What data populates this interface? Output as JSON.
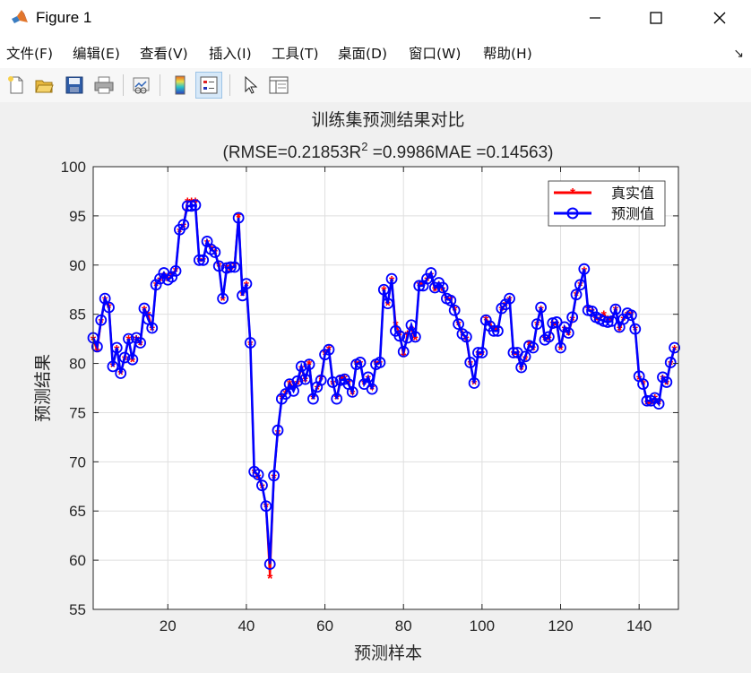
{
  "window": {
    "title": "Figure 1"
  },
  "menu": [
    "文件(F)",
    "编辑(E)",
    "查看(V)",
    "插入(I)",
    "工具(T)",
    "桌面(D)",
    "窗口(W)",
    "帮助(H)"
  ],
  "toolbar_icons": [
    "new-file-icon",
    "open-folder-icon",
    "save-icon",
    "print-icon",
    "link-plot-icon",
    "colorbar-icon",
    "legend-icon",
    "pointer-icon",
    "property-editor-icon"
  ],
  "chart_data": {
    "type": "line",
    "title": "训练集预测结果对比",
    "subtitle_prefix": "(RMSE=0.21853R",
    "subtitle_sup": "2",
    "subtitle_suffix": " =0.9986MAE =0.14563)",
    "xlabel": "预测样本",
    "ylabel": "预测结果",
    "xlim": [
      1,
      150
    ],
    "ylim": [
      55,
      100
    ],
    "xticks": [
      20,
      40,
      60,
      80,
      100,
      120,
      140
    ],
    "yticks": [
      55,
      60,
      65,
      70,
      75,
      80,
      85,
      90,
      95,
      100
    ],
    "grid": true,
    "legend_position": "top-right",
    "colors": {
      "true": "#ff0000",
      "pred": "#0000ff",
      "grid": "#dfdfdf"
    },
    "series": [
      {
        "name": "真实值",
        "marker": "*",
        "values": [
          82.5,
          81.3,
          84.3,
          86.5,
          85.8,
          79.8,
          81.5,
          79,
          80.5,
          82.5,
          80.3,
          82.5,
          82,
          85.5,
          85,
          83.5,
          88,
          88.5,
          89,
          88.5,
          89,
          89.5,
          93.5,
          94,
          96.5,
          96.5,
          96.5,
          90.5,
          90.5,
          92.3,
          91.7,
          91.3,
          90,
          86.5,
          89.8,
          89.5,
          90,
          95,
          87,
          88,
          82,
          69,
          68.5,
          67.5,
          65.5,
          58.3,
          68.5,
          73,
          76.5,
          77,
          78,
          77.5,
          78,
          79.5,
          78.3,
          80,
          76.5,
          77.5,
          78.5,
          81,
          81.5,
          78,
          76.5,
          78.5,
          78.5,
          78,
          77,
          80,
          80,
          78,
          78.5,
          77.5,
          80,
          80,
          87.5,
          86,
          88.5,
          84,
          83,
          80.8,
          83,
          83.5,
          82.5,
          88,
          88,
          88.5,
          89,
          87.5,
          88,
          87.5,
          86.5,
          86.5,
          85.5,
          84,
          83,
          82.5,
          80,
          78,
          81,
          81,
          84.5,
          84,
          83.5,
          83.5,
          85.5,
          86,
          86.5,
          81,
          81,
          79.5,
          80.5,
          82,
          81.5,
          84,
          85.5,
          82.5,
          82.5,
          84,
          84,
          81.5,
          83.5,
          83,
          84.5,
          87,
          88,
          89.5,
          85.5,
          85.3,
          84.5,
          84.5,
          85,
          84.5,
          84.5,
          85.5,
          83.5,
          84.5,
          85,
          85,
          83.5,
          78.5,
          78,
          76,
          76,
          76.5,
          76,
          78.5,
          78,
          80,
          81.5
        ]
      },
      {
        "name": "预测值",
        "marker": "o",
        "values": [
          82.6,
          81.7,
          84.4,
          86.6,
          85.7,
          79.7,
          81.6,
          79,
          80.6,
          82.5,
          80.4,
          82.6,
          82.1,
          85.6,
          84.5,
          83.6,
          88,
          88.6,
          89.2,
          88.5,
          88.8,
          89.4,
          93.6,
          94.1,
          96,
          96,
          96.1,
          90.5,
          90.5,
          92.4,
          91.6,
          91.3,
          89.9,
          86.6,
          89.7,
          89.8,
          89.8,
          94.8,
          86.9,
          88.1,
          82.1,
          69,
          68.7,
          67.6,
          65.5,
          59.6,
          68.6,
          73.2,
          76.4,
          76.9,
          77.9,
          77.2,
          78.2,
          79.7,
          78.4,
          79.9,
          76.4,
          77.6,
          78.3,
          80.9,
          81.4,
          78.1,
          76.4,
          78.3,
          78.4,
          77.9,
          77.1,
          79.9,
          80.1,
          77.9,
          78.6,
          77.4,
          79.9,
          80.1,
          87.5,
          86.1,
          88.6,
          83.3,
          82.8,
          81.2,
          82.6,
          83.9,
          82.7,
          87.9,
          87.9,
          88.6,
          89.2,
          87.7,
          88.2,
          87.7,
          86.6,
          86.4,
          85.4,
          84,
          83,
          82.7,
          80.1,
          78,
          81.1,
          81.1,
          84.4,
          83.8,
          83.3,
          83.3,
          85.6,
          86,
          86.6,
          81.1,
          81.1,
          79.6,
          80.7,
          81.8,
          81.6,
          84,
          85.7,
          82.4,
          82.7,
          84.1,
          84.2,
          81.6,
          83.7,
          83.1,
          84.7,
          87,
          88,
          89.6,
          85.4,
          85.3,
          84.7,
          84.5,
          84.3,
          84.2,
          84.3,
          85.5,
          83.7,
          84.5,
          85.1,
          84.9,
          83.5,
          78.7,
          77.9,
          76.2,
          76.2,
          76.5,
          75.9,
          78.6,
          78.1,
          80.1,
          81.6
        ]
      }
    ]
  }
}
